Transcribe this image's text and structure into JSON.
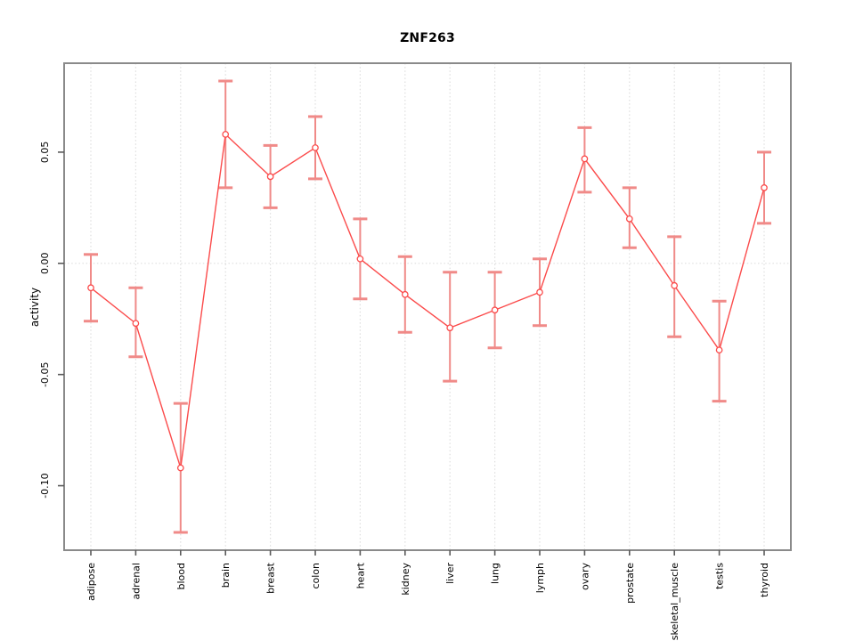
{
  "chart_data": {
    "type": "line",
    "title": "ZNF263",
    "xlabel": "",
    "ylabel": "activity",
    "categories": [
      "adipose",
      "adrenal",
      "blood",
      "brain",
      "breast",
      "colon",
      "heart",
      "kidney",
      "liver",
      "lung",
      "lymph",
      "ovary",
      "prostate",
      "skeletal_muscle",
      "testis",
      "thyroid"
    ],
    "series": [
      {
        "name": "activity",
        "values": [
          -0.011,
          -0.027,
          -0.092,
          0.058,
          0.039,
          0.052,
          0.002,
          -0.014,
          -0.029,
          -0.021,
          -0.013,
          0.047,
          0.02,
          -0.01,
          -0.039,
          0.034
        ],
        "upper": [
          0.004,
          -0.011,
          -0.063,
          0.082,
          0.053,
          0.066,
          0.02,
          0.003,
          -0.004,
          -0.004,
          0.002,
          0.061,
          0.034,
          0.012,
          -0.017,
          0.05
        ],
        "lower": [
          -0.026,
          -0.042,
          -0.121,
          0.034,
          0.025,
          0.038,
          -0.016,
          -0.031,
          -0.053,
          -0.038,
          -0.028,
          0.032,
          0.007,
          -0.033,
          -0.062,
          0.018
        ]
      }
    ],
    "ylim": [
      -0.129,
      0.09
    ],
    "yticks": [
      0.05,
      0.0,
      -0.05,
      -0.1
    ],
    "grid": {
      "vertical_dotted_per_category": true,
      "horizontal": "zero-line-only",
      "style": "dotted"
    },
    "legend": "none",
    "marker": "open-circle",
    "error_bars": true,
    "colors": {
      "line": "#fb4b4b",
      "marker": "#fb4b4b",
      "errorbar": "#f08a88",
      "grid": "#dedede",
      "zero_line": "#dedede",
      "frame": "#8a8a8a",
      "tick": "#5a5a5a",
      "text": "#000000",
      "background": "#ffffff"
    }
  }
}
